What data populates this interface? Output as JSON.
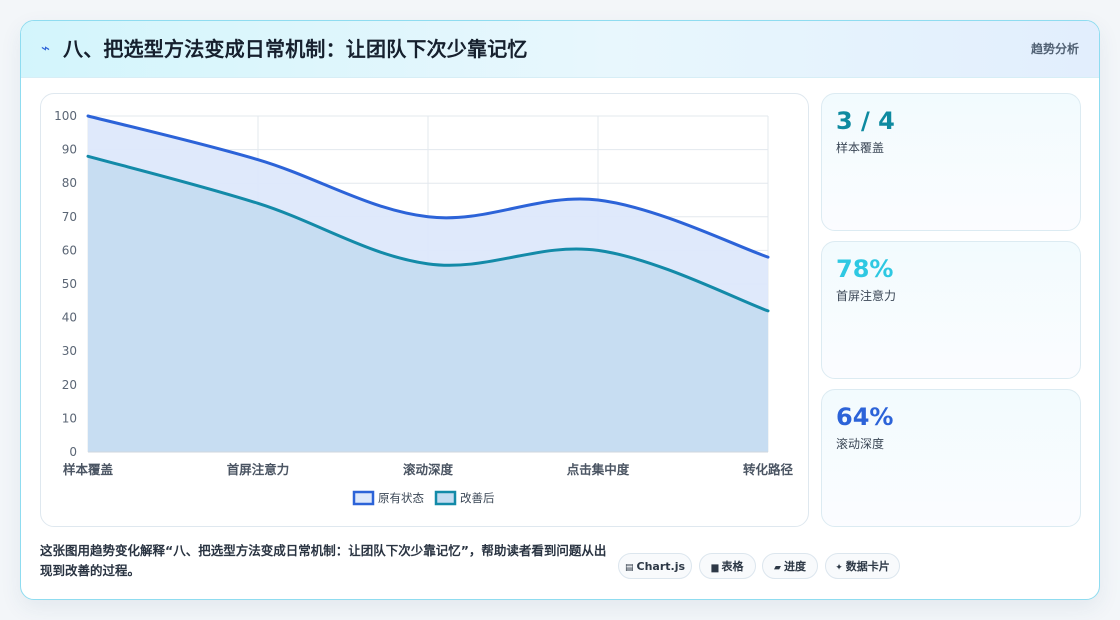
{
  "header": {
    "icon": "lightning-icon",
    "title": "八、把选型方法变成日常机制：让团队下次少靠记忆",
    "tag": "趋势分析"
  },
  "kpis": [
    {
      "value": "3 / 4",
      "label": "样本覆盖",
      "color": "#0e8aa0"
    },
    {
      "value": "78%",
      "label": "首屏注意力",
      "color": "#2ec8e2"
    },
    {
      "value": "64%",
      "label": "滚动深度",
      "color": "#2c63d8"
    }
  ],
  "description": "这张图用趋势变化解释“八、把选型方法变成日常机制：让团队下次少靠记忆”，帮助读者看到问题从出现到改善的过程。",
  "pills": [
    {
      "icon": "chart-icon",
      "label": "Chart.js"
    },
    {
      "icon": "table-icon",
      "label": "表格"
    },
    {
      "icon": "progress-icon",
      "label": "进度"
    },
    {
      "icon": "sparkle-icon",
      "label": "数据卡片"
    }
  ],
  "chart_data": {
    "type": "area",
    "categories": [
      "样本覆盖",
      "首屏注意力",
      "滚动深度",
      "点击集中度",
      "转化路径"
    ],
    "ylim": [
      0,
      100
    ],
    "yticks": [
      0,
      10,
      20,
      30,
      40,
      50,
      60,
      70,
      80,
      90,
      100
    ],
    "grid": true,
    "legend_position": "bottom",
    "series": [
      {
        "name": "原有状态",
        "values": [
          100,
          87,
          70,
          75,
          58
        ],
        "color": "#2c63d8",
        "fill": "#dde8fb"
      },
      {
        "name": "改善后",
        "values": [
          88,
          74,
          56,
          60,
          42
        ],
        "color": "#138aa8",
        "fill": "#c4dcf1"
      }
    ]
  }
}
